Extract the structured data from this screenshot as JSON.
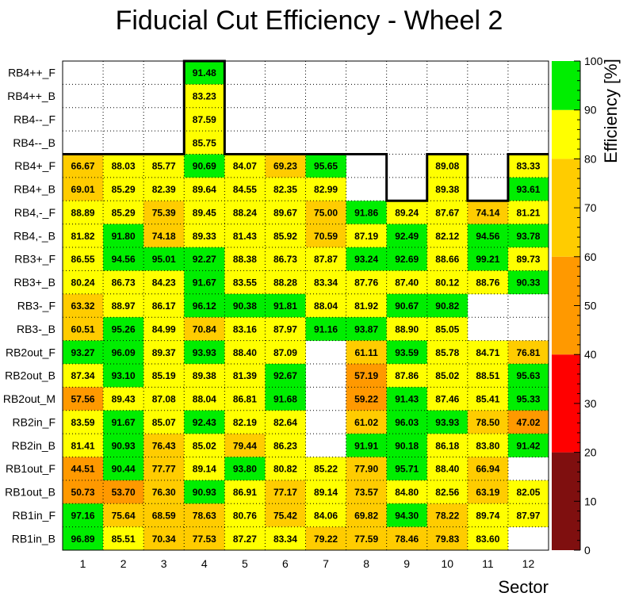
{
  "chart_data": {
    "type": "heatmap",
    "title": "Fiducial Cut Efficiency - Wheel 2",
    "xlabel": "Sector",
    "zlabel": "Efficiency [%]",
    "x_categories": [
      "1",
      "2",
      "3",
      "4",
      "5",
      "6",
      "7",
      "8",
      "9",
      "10",
      "11",
      "12"
    ],
    "y_categories": [
      "RB4++_F",
      "RB4++_B",
      "RB4--_F",
      "RB4--_B",
      "RB4+_F",
      "RB4+_B",
      "RB4,-_F",
      "RB4,-_B",
      "RB3+_F",
      "RB3+_B",
      "RB3-_F",
      "RB3-_B",
      "RB2out_F",
      "RB2out_B",
      "RB2out_M",
      "RB2in_F",
      "RB2in_B",
      "RB1out_F",
      "RB1out_B",
      "RB1in_F",
      "RB1in_B"
    ],
    "values": [
      [
        null,
        null,
        null,
        91.48,
        null,
        null,
        null,
        null,
        null,
        null,
        null,
        null
      ],
      [
        null,
        null,
        null,
        83.23,
        null,
        null,
        null,
        null,
        null,
        null,
        null,
        null
      ],
      [
        null,
        null,
        null,
        87.59,
        null,
        null,
        null,
        null,
        null,
        null,
        null,
        null
      ],
      [
        null,
        null,
        null,
        85.75,
        null,
        null,
        null,
        null,
        null,
        null,
        null,
        null
      ],
      [
        66.67,
        88.03,
        85.77,
        90.69,
        84.07,
        69.23,
        95.65,
        null,
        null,
        89.08,
        null,
        83.33
      ],
      [
        69.01,
        85.29,
        82.39,
        89.64,
        84.55,
        82.35,
        82.99,
        null,
        null,
        89.38,
        null,
        93.61
      ],
      [
        88.89,
        85.29,
        75.39,
        89.45,
        88.24,
        89.67,
        75.0,
        91.86,
        89.24,
        87.67,
        74.14,
        81.21
      ],
      [
        81.82,
        91.8,
        74.18,
        89.33,
        81.43,
        85.92,
        70.59,
        87.19,
        92.49,
        82.12,
        94.56,
        93.78
      ],
      [
        86.55,
        94.56,
        95.01,
        92.27,
        88.38,
        86.73,
        87.87,
        93.24,
        92.69,
        88.66,
        99.21,
        89.73
      ],
      [
        80.24,
        86.73,
        84.23,
        91.67,
        83.55,
        88.28,
        83.34,
        87.76,
        87.4,
        80.12,
        88.76,
        90.33
      ],
      [
        63.32,
        88.97,
        86.17,
        96.12,
        90.38,
        91.81,
        88.04,
        81.92,
        90.67,
        90.82,
        null,
        null
      ],
      [
        60.51,
        95.26,
        84.99,
        70.84,
        83.16,
        87.97,
        91.16,
        93.87,
        88.9,
        85.05,
        null,
        null
      ],
      [
        93.27,
        96.09,
        89.37,
        93.93,
        88.4,
        87.09,
        null,
        61.11,
        93.59,
        85.78,
        84.71,
        76.81
      ],
      [
        87.34,
        93.1,
        85.19,
        89.38,
        81.39,
        92.67,
        null,
        57.19,
        87.86,
        85.02,
        88.51,
        95.63
      ],
      [
        57.56,
        89.43,
        87.08,
        88.04,
        86.81,
        91.68,
        null,
        59.22,
        91.43,
        87.46,
        85.41,
        95.33
      ],
      [
        83.59,
        91.67,
        85.07,
        92.43,
        82.19,
        82.64,
        null,
        61.02,
        96.03,
        93.93,
        78.5,
        47.02
      ],
      [
        81.41,
        90.93,
        76.43,
        85.02,
        79.44,
        86.23,
        null,
        91.91,
        90.18,
        86.18,
        83.8,
        91.42
      ],
      [
        44.51,
        90.44,
        77.77,
        89.14,
        93.8,
        80.82,
        85.22,
        77.9,
        95.71,
        88.4,
        66.94,
        null
      ],
      [
        50.73,
        53.7,
        76.3,
        90.93,
        86.91,
        77.17,
        89.14,
        73.57,
        84.8,
        82.56,
        63.19,
        82.05
      ],
      [
        97.16,
        75.64,
        68.59,
        78.63,
        80.76,
        75.42,
        84.06,
        69.82,
        94.3,
        78.22,
        89.74,
        87.97
      ],
      [
        96.89,
        85.51,
        70.34,
        77.53,
        87.27,
        83.34,
        79.22,
        77.59,
        78.46,
        79.83,
        83.6,
        null
      ]
    ],
    "z_range": [
      0,
      100
    ],
    "z_ticks": [
      "0",
      "10",
      "20",
      "30",
      "40",
      "50",
      "60",
      "70",
      "80",
      "90",
      "100"
    ],
    "color_bands": [
      {
        "from": 0,
        "to": 20,
        "color": "#7f0f0f"
      },
      {
        "from": 20,
        "to": 40,
        "color": "#ff0000"
      },
      {
        "from": 40,
        "to": 60,
        "color": "#ff9900"
      },
      {
        "from": 60,
        "to": 80,
        "color": "#ffcc00"
      },
      {
        "from": 80,
        "to": 90,
        "color": "#ffff00"
      },
      {
        "from": 90,
        "to": 100,
        "color": "#00ee00"
      }
    ],
    "grid": "dotted"
  }
}
